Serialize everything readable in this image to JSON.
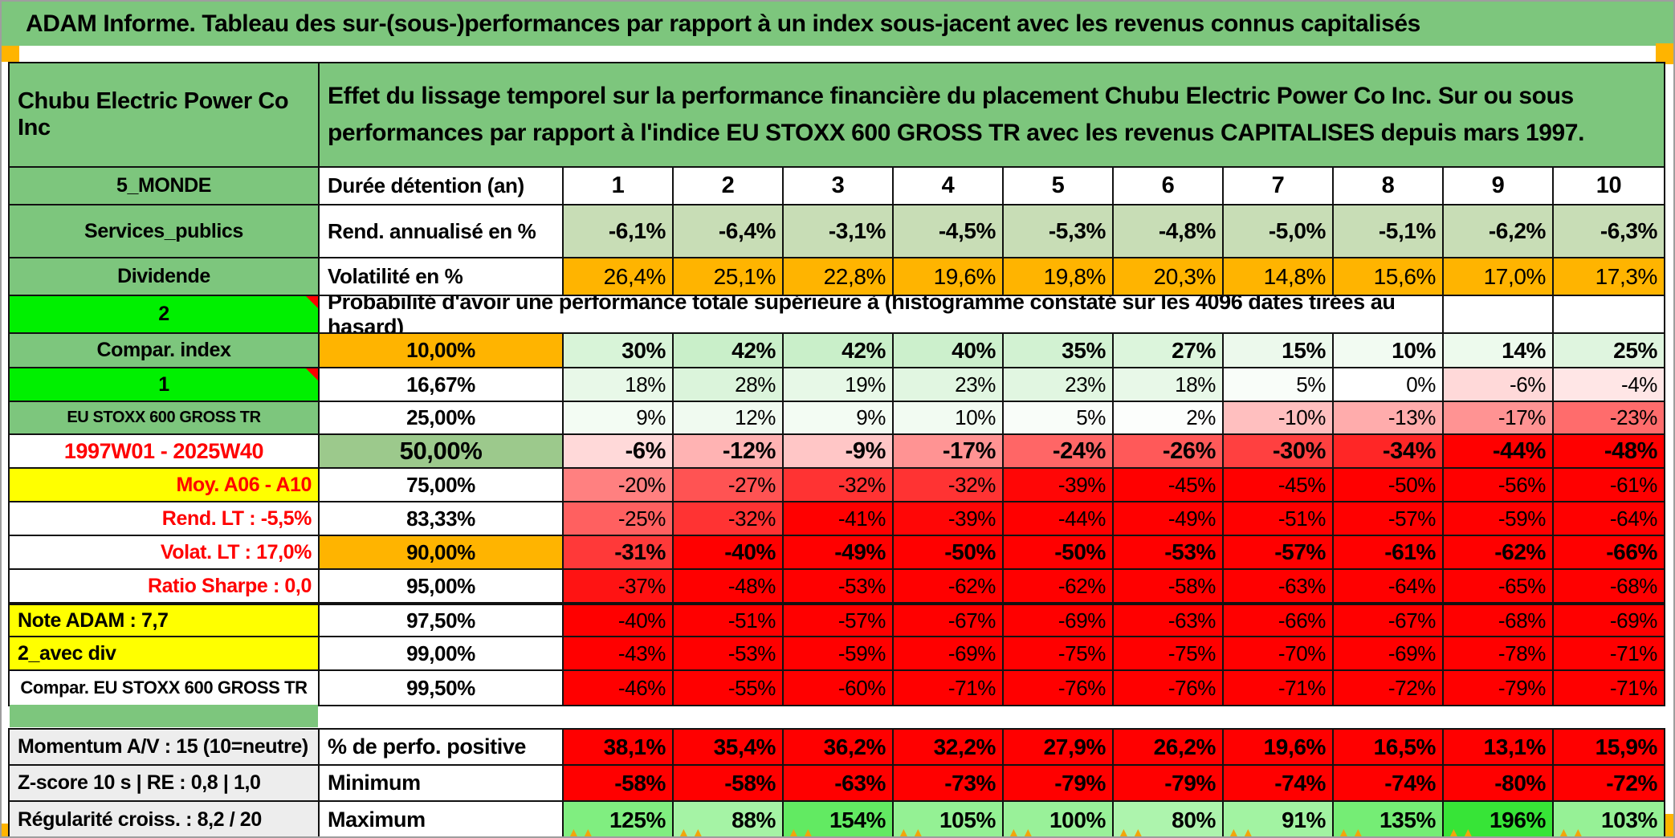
{
  "title": "ADAM Informe. Tableau des sur-(sous-)performances par rapport à un index sous-jacent avec les revenus connus capitalisés",
  "header": {
    "instrument": "Chubu Electric Power Co Inc",
    "description": "Effet du lissage temporel sur la performance financière du placement Chubu Electric Power Co Inc. Sur ou sous performances par rapport à l'indice EU STOXX 600 GROSS TR avec les revenus CAPITALISES depuis mars 1997."
  },
  "colors": {
    "band_green": "#7dc67d",
    "bright_green": "#00f000",
    "orange": "#ffb400",
    "yellow": "#ffff00",
    "sage": "#c8ddb6",
    "sage_50": "#9cc98c",
    "flat_red": "#ff0000",
    "footer_gray": "#ededed",
    "corner_orange": "#ffb400",
    "comment_red": "#ff0000"
  },
  "main_rows": [
    {
      "label": "5_MONDE",
      "lcls": "green",
      "metric": "Durée détention (an)",
      "malign": "left",
      "cells": [
        "1",
        "2",
        "3",
        "4",
        "5",
        "6",
        "7",
        "8",
        "9",
        "10"
      ],
      "scale": "plain",
      "bold": true,
      "calign": "center",
      "csize": 29
    },
    {
      "label": "Services_publics",
      "lcls": "green",
      "metric": "Rend. annualisé en %",
      "malign": "left",
      "cells": [
        "-6,1%",
        "-6,4%",
        "-3,1%",
        "-4,5%",
        "-5,3%",
        "-4,8%",
        "-5,0%",
        "-5,1%",
        "-6,2%",
        "-6,3%"
      ],
      "scale": "sage",
      "bold": true,
      "csize": 28
    },
    {
      "label": "Dividende",
      "lcls": "green",
      "metric": "Volatilité en %",
      "malign": "left",
      "cells": [
        "26,4%",
        "25,1%",
        "22,8%",
        "19,6%",
        "19,8%",
        "20,3%",
        "14,8%",
        "15,6%",
        "17,0%",
        "17,3%"
      ],
      "scale": "orange",
      "bold": false,
      "csize": 28
    },
    {
      "type": "probhdr",
      "label": "2",
      "lcls": "bright",
      "comment": true,
      "text": "Probabilité d'avoir une performance totale supérieure à (histogramme constaté sur les 4096 dates tirées au hasard)",
      "tail": 2
    },
    {
      "label": "Compar. index",
      "lcls": "green",
      "metric": "10,00%",
      "mcls": "orangebg",
      "cells": [
        "30%",
        "42%",
        "42%",
        "40%",
        "35%",
        "27%",
        "15%",
        "10%",
        "14%",
        "25%"
      ],
      "scale": "prob",
      "bold": true,
      "csize": 28
    },
    {
      "label": "1",
      "lcls": "bright",
      "comment": true,
      "metric": "16,67%",
      "cells": [
        "18%",
        "28%",
        "19%",
        "23%",
        "23%",
        "18%",
        "5%",
        "0%",
        "-6%",
        "-4%"
      ],
      "scale": "prob",
      "bold": false,
      "csize": 26
    },
    {
      "label": "EU STOXX 600 GROSS TR",
      "lcls": "green",
      "lsize": 20,
      "metric": "25,00%",
      "cells": [
        "9%",
        "12%",
        "9%",
        "10%",
        "5%",
        "2%",
        "-10%",
        "-13%",
        "-17%",
        "-23%"
      ],
      "scale": "prob",
      "bold": false,
      "csize": 26
    },
    {
      "label": "1997W01 - 2025W40",
      "lcls": "redtx",
      "lsize": 27,
      "metric": "50,00%",
      "mcls": "sage50",
      "msize": 31,
      "cells": [
        "-6%",
        "-12%",
        "-9%",
        "-17%",
        "-24%",
        "-26%",
        "-30%",
        "-34%",
        "-44%",
        "-48%"
      ],
      "scale": "prob",
      "bold": true,
      "csize": 29
    },
    {
      "label": "Moy. A06 - A10",
      "lcls": "yellow redtx",
      "lalign": "right",
      "metric": "75,00%",
      "cells": [
        "-20%",
        "-27%",
        "-32%",
        "-32%",
        "-39%",
        "-45%",
        "-45%",
        "-50%",
        "-56%",
        "-61%"
      ],
      "scale": "prob",
      "bold": false,
      "csize": 26
    },
    {
      "label": "Rend. LT :   -5,5%",
      "lcls": "redtx",
      "lalign": "right",
      "metric": "83,33%",
      "cells": [
        "-25%",
        "-32%",
        "-41%",
        "-39%",
        "-44%",
        "-49%",
        "-51%",
        "-57%",
        "-59%",
        "-64%"
      ],
      "scale": "prob",
      "bold": false,
      "csize": 26
    },
    {
      "label": "Volat. LT :   17,0%",
      "lcls": "redtx",
      "lalign": "right",
      "metric": "90,00%",
      "mcls": "orangebg",
      "cells": [
        "-31%",
        "-40%",
        "-49%",
        "-50%",
        "-50%",
        "-53%",
        "-57%",
        "-61%",
        "-62%",
        "-66%"
      ],
      "scale": "prob",
      "bold": true,
      "csize": 28
    },
    {
      "label": "Ratio Sharpe :   0,0",
      "lcls": "redtx",
      "lalign": "right",
      "metric": "95,00%",
      "cells": [
        "-37%",
        "-48%",
        "-53%",
        "-62%",
        "-62%",
        "-58%",
        "-63%",
        "-64%",
        "-65%",
        "-68%"
      ],
      "scale": "prob",
      "bold": false,
      "csize": 26
    },
    {
      "label": "Note ADAM : 7,7",
      "lcls": "yellow",
      "lalign": "left",
      "metric": "97,50%",
      "cells": [
        "-40%",
        "-51%",
        "-57%",
        "-67%",
        "-69%",
        "-63%",
        "-66%",
        "-67%",
        "-68%",
        "-69%"
      ],
      "scale": "prob",
      "bold": false,
      "csize": 26,
      "thick": true
    },
    {
      "label": "2_avec div",
      "lcls": "yellow",
      "lalign": "left",
      "metric": "99,00%",
      "cells": [
        "-43%",
        "-53%",
        "-59%",
        "-69%",
        "-75%",
        "-75%",
        "-70%",
        "-69%",
        "-78%",
        "-71%"
      ],
      "scale": "prob",
      "bold": false,
      "csize": 26
    },
    {
      "label": "Compar. EU STOXX 600 GROSS TR",
      "lcls": "",
      "lsize": 22,
      "metric": "99,50%",
      "cells": [
        "-46%",
        "-55%",
        "-60%",
        "-71%",
        "-76%",
        "-76%",
        "-71%",
        "-72%",
        "-79%",
        "-71%"
      ],
      "scale": "prob",
      "bold": false,
      "csize": 26
    }
  ],
  "footer_rows": [
    {
      "label": "Momentum A/V : 15 (10=neutre)",
      "metric": "% de perfo. positive",
      "cells": [
        "38,1%",
        "35,4%",
        "36,2%",
        "32,2%",
        "27,9%",
        "26,2%",
        "19,6%",
        "16,5%",
        "13,1%",
        "15,9%"
      ],
      "scale": "flatred",
      "bold": true,
      "csize": 28
    },
    {
      "label": "Z-score 10 s | RE : 0,8 | 1,0",
      "metric": "Minimum",
      "cells": [
        "-58%",
        "-58%",
        "-63%",
        "-73%",
        "-79%",
        "-79%",
        "-74%",
        "-74%",
        "-80%",
        "-72%"
      ],
      "scale": "prob",
      "bold": true,
      "csize": 28
    },
    {
      "label": "Régularité croiss. : 8,2 / 20",
      "metric": "Maximum",
      "cells": [
        "125%",
        "88%",
        "154%",
        "105%",
        "100%",
        "80%",
        "91%",
        "135%",
        "196%",
        "103%"
      ],
      "scale": "max",
      "bold": true,
      "csize": 28
    }
  ]
}
